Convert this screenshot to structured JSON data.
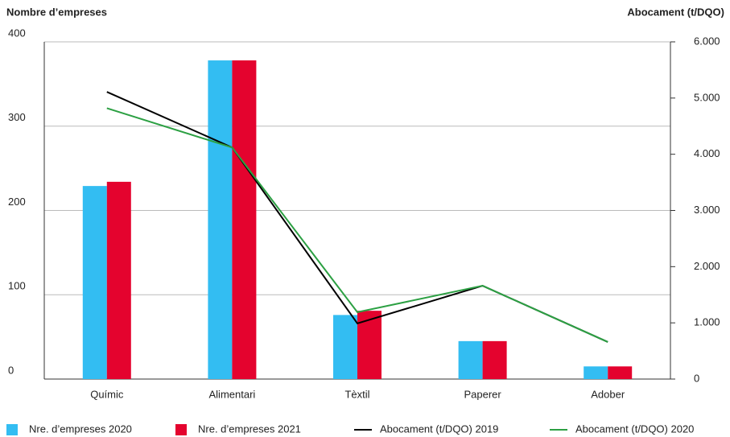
{
  "chart_data": {
    "type": "bar-line",
    "y_label": "Nombre d’empreses",
    "y2_label": "Abocament (t/DQO)",
    "categories": [
      "Químic",
      "Alimentari",
      "Tèxtil",
      "Paperer",
      "Adober"
    ],
    "series": [
      {
        "name": "Nre. d’empreses 2020",
        "color": "#33bdf2",
        "kind": "bar",
        "values": [
          229,
          378,
          76,
          45,
          15
        ]
      },
      {
        "name": "Nre. d’empreses 2021",
        "color": "#e4032e",
        "kind": "bar",
        "values": [
          234,
          378,
          81,
          45,
          15
        ]
      },
      {
        "name": "Abocament (t/DQO) 2019",
        "color": "#000000",
        "kind": "line",
        "axis": "y2",
        "values": [
          5110,
          4120,
          990,
          1660,
          660
        ]
      },
      {
        "name": "Abocament (t/DQO) 2020",
        "color": "#2ca043",
        "kind": "line",
        "axis": "y2",
        "values": [
          4820,
          4120,
          1190,
          1660,
          660
        ]
      }
    ],
    "ylim": [
      0,
      400
    ],
    "yticks": [
      0,
      100,
      200,
      300,
      400
    ],
    "y2lim": [
      0,
      6000
    ],
    "y2ticks": [
      0,
      {
        "value": 1000,
        "label": "1.000"
      },
      {
        "value": 2000,
        "label": "2.000"
      },
      {
        "value": 3000,
        "label": "3.000"
      },
      {
        "value": 4000,
        "label": "4.000"
      },
      {
        "value": 5000,
        "label": "5.000"
      },
      {
        "value": 6000,
        "label": "6.000"
      }
    ],
    "grid": true
  }
}
